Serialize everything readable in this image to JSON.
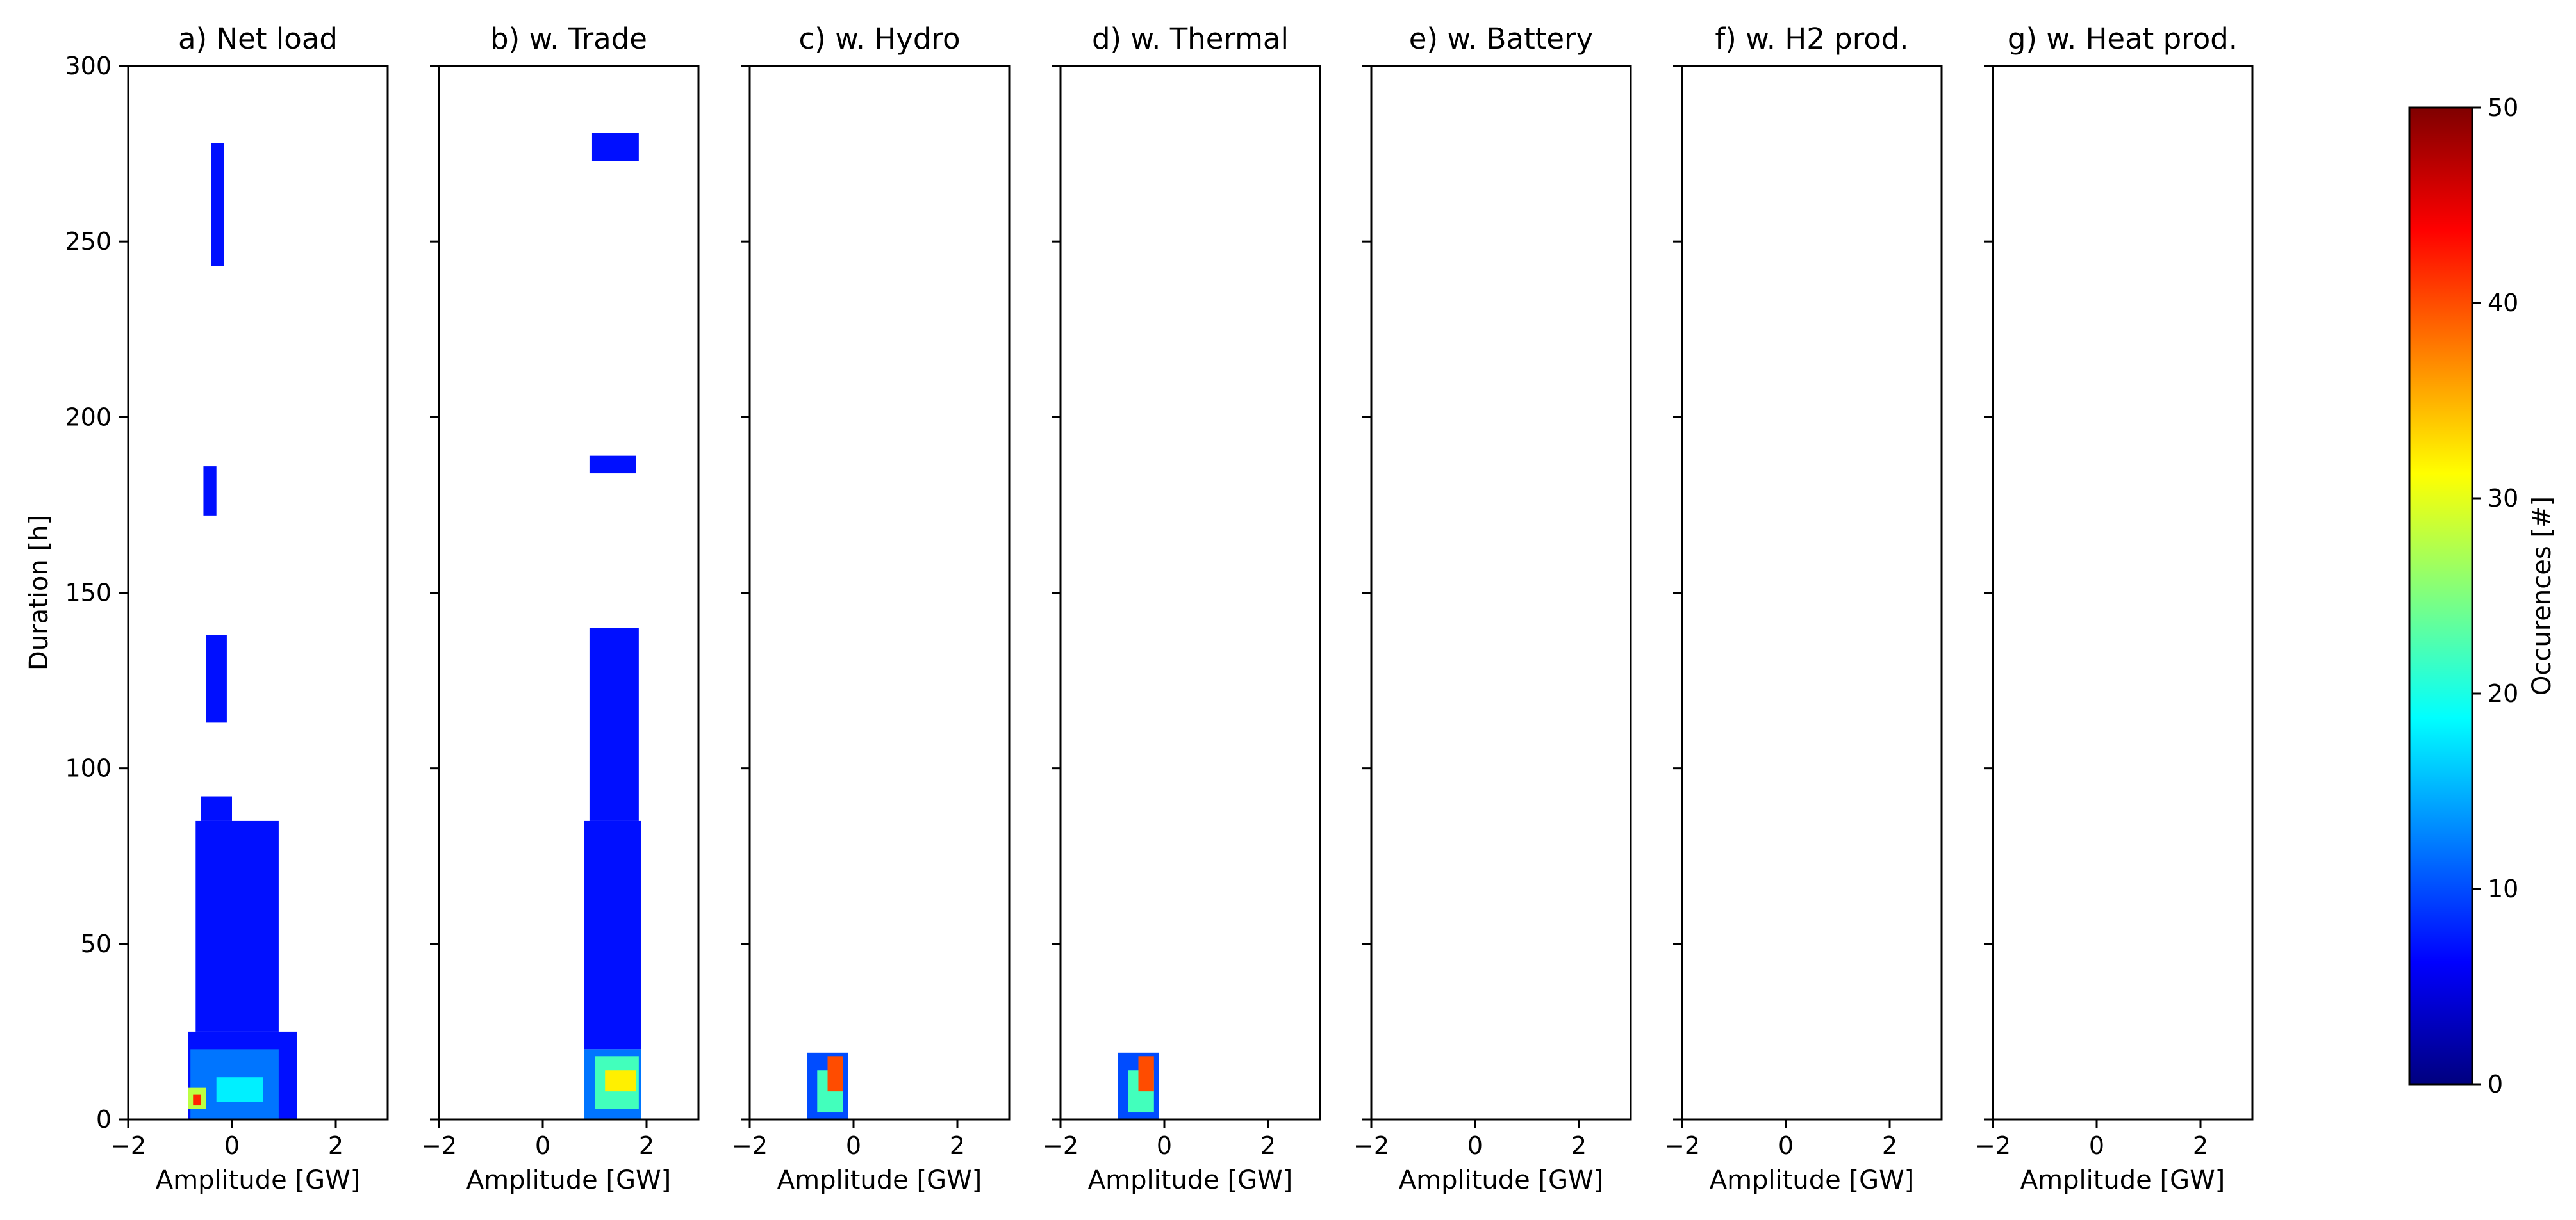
{
  "chart_data": {
    "type": "heatmap",
    "panels": [
      {
        "title": "a) Net load",
        "xlabel": "Amplitude [GW]",
        "ylabel": "Duration [h]",
        "show_y_tick_labels": true
      },
      {
        "title": "b) w. Trade",
        "xlabel": "Amplitude [GW]"
      },
      {
        "title": "c) w. Hydro",
        "xlabel": "Amplitude [GW]"
      },
      {
        "title": "d) w. Thermal",
        "xlabel": "Amplitude [GW]"
      },
      {
        "title": "e) w. Battery",
        "xlabel": "Amplitude [GW]"
      },
      {
        "title": "f) w. H2 prod.",
        "xlabel": "Amplitude [GW]"
      },
      {
        "title": "g) w. Heat prod.",
        "xlabel": "Amplitude [GW]"
      }
    ],
    "xlim": [
      -2,
      3
    ],
    "ylim": [
      0,
      300
    ],
    "x_ticks": [
      -2,
      0,
      2
    ],
    "x_tick_labels": [
      "−2",
      "0",
      "2"
    ],
    "y_ticks": [
      0,
      50,
      100,
      150,
      200,
      250,
      300
    ],
    "y_tick_labels": [
      "0",
      "50",
      "100",
      "150",
      "200",
      "250",
      "300"
    ],
    "colorbar": {
      "label": "Occurences [#]",
      "range": [
        0,
        50
      ],
      "ticks": [
        0,
        10,
        20,
        30,
        40,
        50
      ],
      "tick_labels": [
        "0",
        "10",
        "20",
        "30",
        "40",
        "50"
      ],
      "colormap": "jet",
      "colors": [
        "#00007f",
        "#0000ff",
        "#007fff",
        "#00ffff",
        "#7fff7f",
        "#ffff00",
        "#ff7f00",
        "#ff0000",
        "#7f0000"
      ]
    },
    "regions": [
      {
        "panel": 0,
        "level": 7,
        "x": [
          -0.4,
          -0.15
        ],
        "y": [
          243,
          278
        ]
      },
      {
        "panel": 0,
        "level": 7,
        "x": [
          -0.55,
          -0.3
        ],
        "y": [
          172,
          186
        ]
      },
      {
        "panel": 0,
        "level": 7,
        "x": [
          -0.5,
          -0.1
        ],
        "y": [
          113,
          138
        ]
      },
      {
        "panel": 0,
        "level": 7,
        "x": [
          -0.6,
          0.0
        ],
        "y": [
          85,
          92
        ]
      },
      {
        "panel": 0,
        "level": 7,
        "x": [
          -0.7,
          0.9
        ],
        "y": [
          25,
          85
        ]
      },
      {
        "panel": 0,
        "level": 7,
        "x": [
          -0.85,
          1.25
        ],
        "y": [
          0,
          25
        ]
      },
      {
        "panel": 0,
        "level": 12,
        "x": [
          -0.8,
          0.9
        ],
        "y": [
          0,
          20
        ]
      },
      {
        "panel": 0,
        "level": 18,
        "x": [
          -0.3,
          0.6
        ],
        "y": [
          5,
          12
        ]
      },
      {
        "panel": 0,
        "level": 28,
        "x": [
          -0.85,
          -0.5
        ],
        "y": [
          3,
          9
        ]
      },
      {
        "panel": 0,
        "level": 42,
        "x": [
          -0.75,
          -0.6
        ],
        "y": [
          4,
          7
        ]
      },
      {
        "panel": 1,
        "level": 7,
        "x": [
          0.95,
          1.85
        ],
        "y": [
          273,
          281
        ]
      },
      {
        "panel": 1,
        "level": 7,
        "x": [
          0.9,
          1.8
        ],
        "y": [
          184,
          189
        ]
      },
      {
        "panel": 1,
        "level": 7,
        "x": [
          0.9,
          1.85
        ],
        "y": [
          85,
          140
        ]
      },
      {
        "panel": 1,
        "level": 7,
        "x": [
          0.8,
          1.9
        ],
        "y": [
          20,
          85
        ]
      },
      {
        "panel": 1,
        "level": 12,
        "x": [
          0.8,
          1.9
        ],
        "y": [
          0,
          20
        ]
      },
      {
        "panel": 1,
        "level": 22,
        "x": [
          1.0,
          1.85
        ],
        "y": [
          3,
          18
        ]
      },
      {
        "panel": 1,
        "level": 32,
        "x": [
          1.2,
          1.8
        ],
        "y": [
          8,
          14
        ]
      },
      {
        "panel": 2,
        "level": 10,
        "x": [
          -0.9,
          -0.1
        ],
        "y": [
          0,
          19
        ]
      },
      {
        "panel": 2,
        "level": 22,
        "x": [
          -0.7,
          -0.2
        ],
        "y": [
          2,
          14
        ]
      },
      {
        "panel": 2,
        "level": 40,
        "x": [
          -0.5,
          -0.2
        ],
        "y": [
          8,
          18
        ]
      },
      {
        "panel": 3,
        "level": 10,
        "x": [
          -0.9,
          -0.1
        ],
        "y": [
          0,
          19
        ]
      },
      {
        "panel": 3,
        "level": 22,
        "x": [
          -0.7,
          -0.2
        ],
        "y": [
          2,
          14
        ]
      },
      {
        "panel": 3,
        "level": 40,
        "x": [
          -0.5,
          -0.2
        ],
        "y": [
          8,
          18
        ]
      }
    ]
  }
}
